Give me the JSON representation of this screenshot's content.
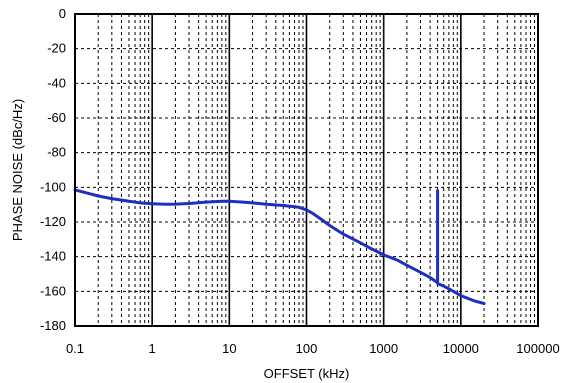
{
  "chart_data": {
    "type": "line",
    "title": "",
    "xlabel": "OFFSET (kHz)",
    "ylabel": "PHASE NOISE (dBc/Hz)",
    "xscale": "log",
    "xlim": [
      0.1,
      100000
    ],
    "ylim": [
      -180,
      0
    ],
    "x_ticks": [
      0.1,
      1,
      10,
      100,
      1000,
      10000,
      100000
    ],
    "x_tick_labels": [
      "0.1",
      "1",
      "10",
      "100",
      "1000",
      "10000",
      "100000"
    ],
    "y_ticks": [
      0,
      -20,
      -40,
      -60,
      -80,
      -100,
      -120,
      -140,
      -160,
      -180
    ],
    "y_tick_labels": [
      "0",
      "-20",
      "-40",
      "-60",
      "-80",
      "-100",
      "-120",
      "-140",
      "-160",
      "-180"
    ],
    "grid": true,
    "grid_style": "dashed",
    "series": [
      {
        "color": "#1f2fbf",
        "points": [
          [
            0.1,
            -101.5
          ],
          [
            0.15,
            -103.5
          ],
          [
            0.2,
            -105
          ],
          [
            0.3,
            -106.5
          ],
          [
            0.5,
            -108
          ],
          [
            0.7,
            -109
          ],
          [
            1,
            -109.5
          ],
          [
            1.5,
            -109.8
          ],
          [
            2,
            -109.7
          ],
          [
            3,
            -109.3
          ],
          [
            5,
            -108.5
          ],
          [
            8,
            -108
          ],
          [
            10,
            -108
          ],
          [
            15,
            -108.5
          ],
          [
            20,
            -109
          ],
          [
            30,
            -109.8
          ],
          [
            50,
            -110.5
          ],
          [
            80,
            -111.5
          ],
          [
            100,
            -113
          ],
          [
            120,
            -115
          ],
          [
            150,
            -118
          ],
          [
            200,
            -122
          ],
          [
            300,
            -127
          ],
          [
            500,
            -132
          ],
          [
            700,
            -135.5
          ],
          [
            1000,
            -139
          ],
          [
            1500,
            -142
          ],
          [
            2000,
            -145
          ],
          [
            3000,
            -149
          ],
          [
            4000,
            -152
          ],
          [
            5000,
            -155
          ],
          [
            5001,
            -102
          ],
          [
            5002,
            -155.5
          ],
          [
            6000,
            -157
          ],
          [
            8000,
            -160
          ],
          [
            10000,
            -162.5
          ],
          [
            15000,
            -165.5
          ],
          [
            20000,
            -167
          ]
        ]
      }
    ]
  }
}
